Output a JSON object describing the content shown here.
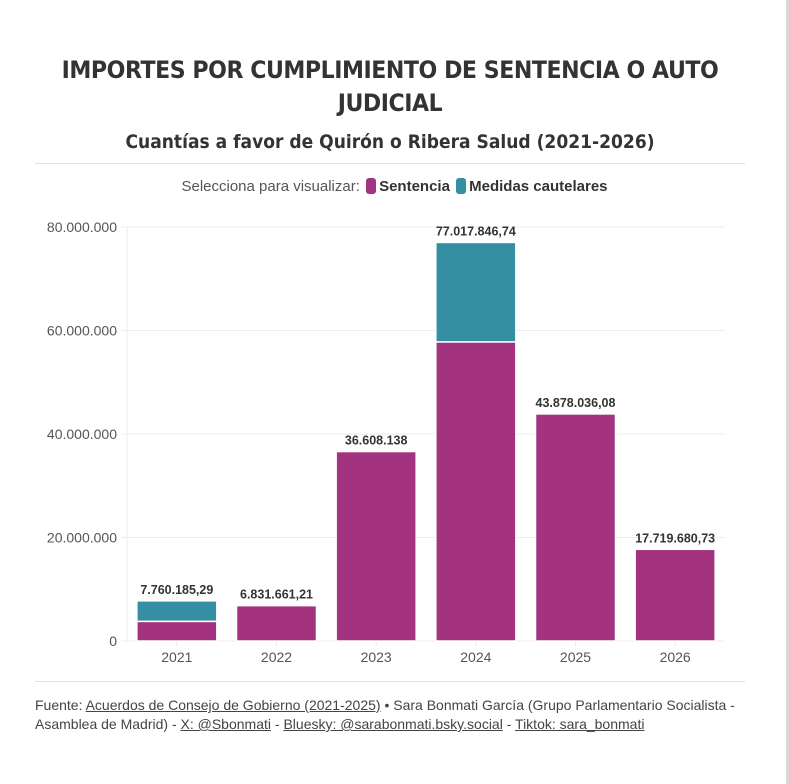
{
  "title": "IMPORTES POR CUMPLIMIENTO DE SENTENCIA O AUTO JUDICIAL",
  "subtitle": "Cuantías a favor de Quirón o Ribera Salud (2021-2026)",
  "legend": {
    "label": "Selecciona para visualizar:",
    "items": [
      {
        "name": "Sentencia",
        "color": "#A3337E"
      },
      {
        "name": "Medidas cautelares",
        "color": "#358FA3"
      }
    ]
  },
  "chart_data": {
    "type": "bar",
    "stacked": true,
    "title": "IMPORTES POR CUMPLIMIENTO DE SENTENCIA O AUTO JUDICIAL",
    "subtitle": "Cuantías a favor de Quirón o Ribera Salud (2021-2026)",
    "categories": [
      "2021",
      "2022",
      "2023",
      "2024",
      "2025",
      "2026"
    ],
    "series": [
      {
        "name": "Sentencia",
        "color": "#A3337E",
        "values": [
          3800000,
          6831661.21,
          36608138,
          57800000,
          43878036.08,
          17719680.73
        ]
      },
      {
        "name": "Medidas cautelares",
        "color": "#358FA3",
        "values": [
          3960185.29,
          0,
          0,
          19217846.74,
          0,
          0
        ]
      }
    ],
    "totals_labels": [
      "7.760.185,29",
      "6.831.661,21",
      "36.608.138",
      "77.017.846,74",
      "43.878.036,08",
      "17.719.680,73"
    ],
    "totals": [
      7760185.29,
      6831661.21,
      36608138,
      77017846.74,
      43878036.08,
      17719680.73
    ],
    "yticks": [
      0,
      20000000,
      40000000,
      60000000,
      80000000
    ],
    "ytick_labels": [
      "0",
      "20.000.000",
      "40.000.000",
      "60.000.000",
      "80.000.000"
    ],
    "ylim": [
      0,
      80000000
    ],
    "xlabel": "",
    "ylabel": "",
    "grid": true,
    "legend_position": "top-center"
  },
  "footer": {
    "prefix": "Fuente: ",
    "source_link": "Acuerdos de Consejo de Gobierno (2021-2025)",
    "author_text": " • Sara Bonmati García (Grupo Parlamentario Socialista - Asamblea de Madrid) - ",
    "x_link": "X: @Sbonmati",
    "sep1": " - ",
    "bluesky_link": "Bluesky: @sarabonmati.bsky.social",
    "sep2": " - ",
    "tiktok_link": "Tiktok: sara_bonmati"
  }
}
